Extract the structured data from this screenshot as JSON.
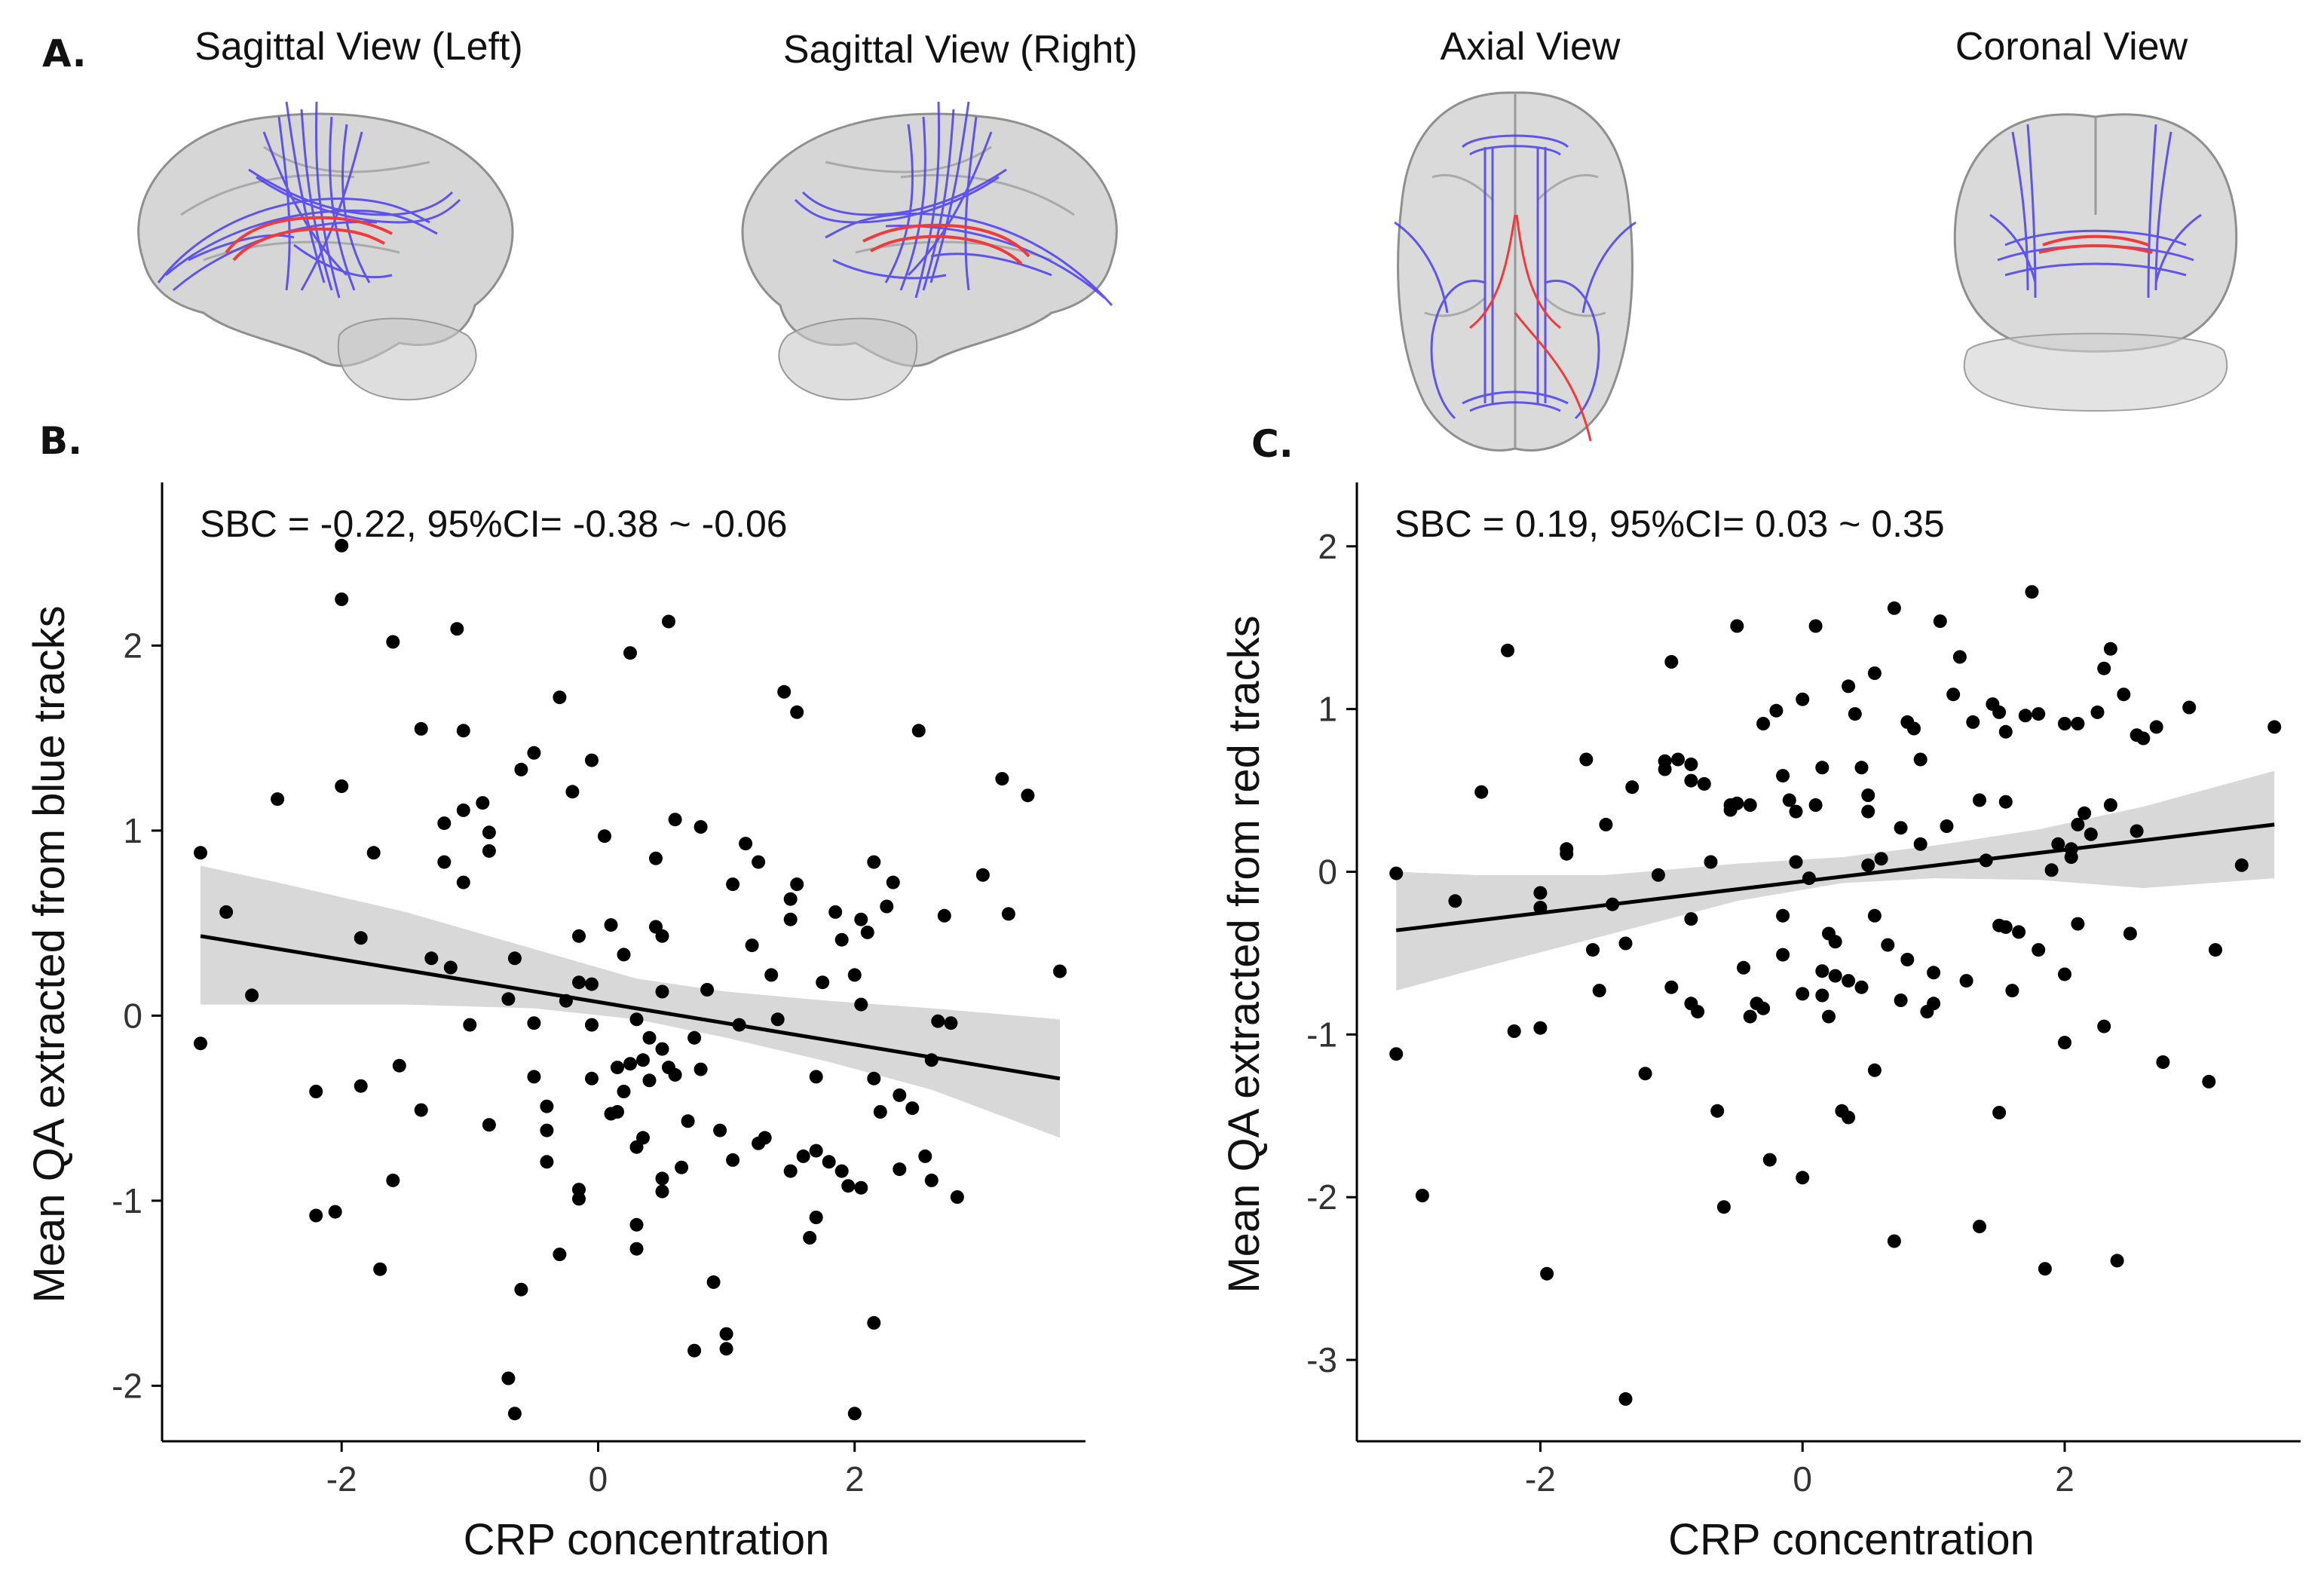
{
  "panel_a": {
    "letter": "A.",
    "views": [
      {
        "id": "sagittal-left",
        "title": "Sagittal View (Left)"
      },
      {
        "id": "sagittal-right",
        "title": "Sagittal View (Right)"
      },
      {
        "id": "axial",
        "title": "Axial View"
      },
      {
        "id": "coronal",
        "title": "Coronal View"
      }
    ],
    "colors": {
      "brain": "#a9a9a9",
      "blue_tracks": "#4a3df0",
      "red_tracks": "#ef3b3b"
    }
  },
  "chart_data": [
    {
      "panel_letter": "B.",
      "type": "scatter",
      "annotation": "SBC = -0.22, 95%CI= -0.38 ~ -0.06",
      "xlabel": "CRP concentration",
      "ylabel": "Mean QA extracted from blue tracks",
      "xlim": [
        -3.4,
        3.8
      ],
      "ylim": [
        -2.3,
        2.8
      ],
      "xticks": [
        -2,
        0,
        2
      ],
      "yticks": [
        -2,
        -1,
        0,
        1,
        2
      ],
      "fit": {
        "x": [
          -3.1,
          3.6
        ],
        "y": [
          0.43,
          -0.34
        ]
      },
      "ci_band": {
        "x": [
          -3.1,
          -2.5,
          -1.5,
          -0.5,
          0.3,
          1.0,
          1.8,
          2.6,
          3.6
        ],
        "lower": [
          0.06,
          0.06,
          0.06,
          0.04,
          -0.02,
          -0.12,
          -0.25,
          -0.4,
          -0.66
        ],
        "upper": [
          0.81,
          0.72,
          0.56,
          0.36,
          0.2,
          0.13,
          0.08,
          0.04,
          -0.02
        ]
      },
      "points": [
        [
          -3.1,
          0.88
        ],
        [
          -3.1,
          -0.15
        ],
        [
          -2.9,
          0.56
        ],
        [
          -2.7,
          0.11
        ],
        [
          -2.5,
          1.17
        ],
        [
          -2.2,
          -0.41
        ],
        [
          -2.2,
          -1.08
        ],
        [
          -2.05,
          -1.06
        ],
        [
          -2.0,
          2.54
        ],
        [
          -2.0,
          2.25
        ],
        [
          -2.0,
          1.24
        ],
        [
          -1.85,
          0.42
        ],
        [
          -1.85,
          -0.38
        ],
        [
          -1.75,
          0.88
        ],
        [
          -1.7,
          -1.37
        ],
        [
          -1.6,
          -0.89
        ],
        [
          -1.6,
          2.02
        ],
        [
          -1.55,
          -0.27
        ],
        [
          -1.38,
          1.55
        ],
        [
          -1.38,
          -0.51
        ],
        [
          -1.3,
          0.31
        ],
        [
          -1.2,
          1.04
        ],
        [
          -1.2,
          0.83
        ],
        [
          -1.15,
          0.26
        ],
        [
          -1.1,
          2.09
        ],
        [
          -1.05,
          1.54
        ],
        [
          -1.05,
          1.11
        ],
        [
          -1.05,
          0.72
        ],
        [
          -1.0,
          -0.05
        ],
        [
          -0.9,
          1.15
        ],
        [
          -0.85,
          0.99
        ],
        [
          -0.85,
          0.89
        ],
        [
          -0.85,
          -0.59
        ],
        [
          -0.7,
          -1.96
        ],
        [
          -0.7,
          0.09
        ],
        [
          -0.65,
          -2.15
        ],
        [
          -0.65,
          0.31
        ],
        [
          -0.6,
          1.33
        ],
        [
          -0.6,
          -1.48
        ],
        [
          -0.5,
          1.42
        ],
        [
          -0.5,
          -0.04
        ],
        [
          -0.5,
          -0.33
        ],
        [
          -0.4,
          -0.49
        ],
        [
          -0.4,
          -0.62
        ],
        [
          -0.4,
          -0.79
        ],
        [
          -0.3,
          1.72
        ],
        [
          -0.3,
          -1.29
        ],
        [
          -0.25,
          0.08
        ],
        [
          -0.2,
          1.21
        ],
        [
          -0.15,
          0.43
        ],
        [
          -0.15,
          0.18
        ],
        [
          -0.15,
          -0.94
        ],
        [
          -0.15,
          -0.99
        ],
        [
          -0.05,
          0.17
        ],
        [
          -0.05,
          -0.34
        ],
        [
          -0.05,
          1.38
        ],
        [
          -0.05,
          -0.05
        ],
        [
          0.05,
          0.97
        ],
        [
          0.1,
          0.49
        ],
        [
          0.1,
          -0.53
        ],
        [
          0.15,
          -0.28
        ],
        [
          0.15,
          -0.52
        ],
        [
          0.2,
          -0.41
        ],
        [
          0.2,
          0.33
        ],
        [
          0.25,
          1.96
        ],
        [
          0.25,
          -0.26
        ],
        [
          0.3,
          -0.02
        ],
        [
          0.3,
          -0.71
        ],
        [
          0.3,
          -1.13
        ],
        [
          0.3,
          -1.26
        ],
        [
          0.35,
          -0.66
        ],
        [
          0.35,
          -0.24
        ],
        [
          0.4,
          -0.35
        ],
        [
          0.4,
          -0.12
        ],
        [
          0.45,
          0.85
        ],
        [
          0.45,
          0.48
        ],
        [
          0.5,
          0.43
        ],
        [
          0.5,
          0.13
        ],
        [
          0.5,
          -0.18
        ],
        [
          0.5,
          -0.95
        ],
        [
          0.5,
          -0.88
        ],
        [
          0.55,
          2.13
        ],
        [
          0.55,
          -0.28
        ],
        [
          0.6,
          1.06
        ],
        [
          0.6,
          -0.32
        ],
        [
          0.65,
          -0.82
        ],
        [
          0.7,
          -0.57
        ],
        [
          0.75,
          -0.12
        ],
        [
          0.75,
          -1.81
        ],
        [
          0.8,
          1.02
        ],
        [
          0.8,
          -0.29
        ],
        [
          0.85,
          0.14
        ],
        [
          0.9,
          -1.44
        ],
        [
          0.95,
          -0.62
        ],
        [
          1.0,
          -1.8
        ],
        [
          1.0,
          -1.72
        ],
        [
          1.05,
          0.71
        ],
        [
          1.05,
          -0.78
        ],
        [
          1.1,
          -0.05
        ],
        [
          1.15,
          0.93
        ],
        [
          1.2,
          0.38
        ],
        [
          1.25,
          0.83
        ],
        [
          1.25,
          -0.69
        ],
        [
          1.3,
          -0.66
        ],
        [
          1.35,
          0.22
        ],
        [
          1.4,
          -0.02
        ],
        [
          1.45,
          1.75
        ],
        [
          1.5,
          0.52
        ],
        [
          1.5,
          0.63
        ],
        [
          1.5,
          -0.84
        ],
        [
          1.55,
          0.71
        ],
        [
          1.55,
          1.64
        ],
        [
          1.6,
          -0.76
        ],
        [
          1.65,
          -1.2
        ],
        [
          1.7,
          -1.09
        ],
        [
          1.7,
          -0.73
        ],
        [
          1.7,
          -0.33
        ],
        [
          1.75,
          0.18
        ],
        [
          1.8,
          -0.79
        ],
        [
          1.85,
          0.56
        ],
        [
          1.9,
          0.41
        ],
        [
          1.9,
          -0.84
        ],
        [
          1.95,
          -0.92
        ],
        [
          2.0,
          -2.15
        ],
        [
          2.0,
          0.22
        ],
        [
          2.05,
          0.52
        ],
        [
          2.05,
          -0.93
        ],
        [
          2.05,
          0.06
        ],
        [
          2.1,
          0.45
        ],
        [
          2.15,
          -1.66
        ],
        [
          2.15,
          0.83
        ],
        [
          2.15,
          -0.34
        ],
        [
          2.2,
          -0.52
        ],
        [
          2.25,
          0.59
        ],
        [
          2.3,
          0.72
        ],
        [
          2.35,
          -0.43
        ],
        [
          2.35,
          -0.83
        ],
        [
          2.45,
          -0.5
        ],
        [
          2.5,
          1.54
        ],
        [
          2.55,
          -0.76
        ],
        [
          2.6,
          -0.89
        ],
        [
          2.6,
          -0.24
        ],
        [
          2.65,
          -0.03
        ],
        [
          2.7,
          0.54
        ],
        [
          2.75,
          -0.04
        ],
        [
          2.8,
          -0.98
        ],
        [
          3.0,
          0.76
        ],
        [
          3.15,
          1.28
        ],
        [
          3.2,
          0.55
        ],
        [
          3.35,
          1.19
        ],
        [
          3.6,
          0.24
        ]
      ]
    },
    {
      "panel_letter": "C.",
      "type": "scatter",
      "annotation": "SBC = 0.19, 95%CI= 0.03 ~ 0.35",
      "xlabel": "CRP concentration",
      "ylabel": "Mean QA extracted from red tracks",
      "xlim": [
        -3.4,
        3.8
      ],
      "ylim": [
        -3.5,
        2.3
      ],
      "xticks": [
        -2,
        0,
        2
      ],
      "yticks": [
        -3,
        -2,
        -1,
        0,
        1,
        2
      ],
      "fit": {
        "x": [
          -3.1,
          3.6
        ],
        "y": [
          -0.36,
          0.29
        ]
      },
      "ci_band": {
        "x": [
          -3.1,
          -2.5,
          -1.5,
          -0.5,
          0.3,
          1.0,
          1.8,
          2.6,
          3.6
        ],
        "lower": [
          -0.73,
          -0.6,
          -0.39,
          -0.18,
          -0.07,
          -0.04,
          -0.05,
          -0.1,
          -0.04
        ],
        "upper": [
          0.0,
          -0.02,
          -0.02,
          0.05,
          0.09,
          0.16,
          0.26,
          0.4,
          0.62
        ]
      },
      "points": [
        [
          -3.1,
          -0.01
        ],
        [
          -3.1,
          -1.12
        ],
        [
          -2.9,
          -1.99
        ],
        [
          -2.65,
          -0.18
        ],
        [
          -2.45,
          0.49
        ],
        [
          -2.25,
          1.36
        ],
        [
          -2.2,
          -0.98
        ],
        [
          -2.0,
          -0.96
        ],
        [
          -2.0,
          -0.13
        ],
        [
          -2.0,
          -0.22
        ],
        [
          -1.95,
          -2.47
        ],
        [
          -1.8,
          0.14
        ],
        [
          -1.8,
          0.11
        ],
        [
          -1.65,
          0.69
        ],
        [
          -1.6,
          -0.48
        ],
        [
          -1.55,
          -0.73
        ],
        [
          -1.5,
          0.29
        ],
        [
          -1.45,
          -0.2
        ],
        [
          -1.35,
          -3.24
        ],
        [
          -1.35,
          -0.44
        ],
        [
          -1.3,
          0.52
        ],
        [
          -1.2,
          -1.24
        ],
        [
          -1.1,
          -0.02
        ],
        [
          -1.05,
          0.68
        ],
        [
          -1.05,
          0.63
        ],
        [
          -1.0,
          1.29
        ],
        [
          -1.0,
          -0.71
        ],
        [
          -0.95,
          0.69
        ],
        [
          -0.85,
          0.66
        ],
        [
          -0.85,
          0.56
        ],
        [
          -0.85,
          -0.29
        ],
        [
          -0.85,
          -0.81
        ],
        [
          -0.8,
          -0.86
        ],
        [
          -0.75,
          0.54
        ],
        [
          -0.7,
          0.06
        ],
        [
          -0.65,
          -1.47
        ],
        [
          -0.6,
          -2.06
        ],
        [
          -0.55,
          0.41
        ],
        [
          -0.55,
          0.38
        ],
        [
          -0.5,
          1.51
        ],
        [
          -0.5,
          0.42
        ],
        [
          -0.45,
          -0.59
        ],
        [
          -0.4,
          0.41
        ],
        [
          -0.4,
          -0.89
        ],
        [
          -0.35,
          -0.81
        ],
        [
          -0.3,
          0.91
        ],
        [
          -0.3,
          -0.84
        ],
        [
          -0.25,
          -1.77
        ],
        [
          -0.2,
          0.99
        ],
        [
          -0.15,
          0.59
        ],
        [
          -0.15,
          -0.27
        ],
        [
          -0.15,
          -0.51
        ],
        [
          -0.1,
          0.44
        ],
        [
          -0.05,
          0.06
        ],
        [
          -0.05,
          0.37
        ],
        [
          0.0,
          1.06
        ],
        [
          0.0,
          -0.75
        ],
        [
          0.0,
          -1.88
        ],
        [
          0.05,
          -0.04
        ],
        [
          0.1,
          0.41
        ],
        [
          0.1,
          1.51
        ],
        [
          0.15,
          -0.61
        ],
        [
          0.15,
          0.64
        ],
        [
          0.15,
          -0.76
        ],
        [
          0.2,
          -0.38
        ],
        [
          0.2,
          -0.89
        ],
        [
          0.25,
          -0.64
        ],
        [
          0.25,
          -0.43
        ],
        [
          0.3,
          -1.47
        ],
        [
          0.35,
          1.14
        ],
        [
          0.35,
          -1.51
        ],
        [
          0.35,
          -0.67
        ],
        [
          0.4,
          0.97
        ],
        [
          0.45,
          -0.71
        ],
        [
          0.45,
          0.64
        ],
        [
          0.5,
          0.47
        ],
        [
          0.5,
          0.37
        ],
        [
          0.5,
          0.04
        ],
        [
          0.55,
          1.22
        ],
        [
          0.55,
          -0.27
        ],
        [
          0.55,
          -1.22
        ],
        [
          0.6,
          0.08
        ],
        [
          0.65,
          -0.45
        ],
        [
          0.7,
          1.62
        ],
        [
          0.7,
          -2.27
        ],
        [
          0.75,
          0.27
        ],
        [
          0.75,
          -0.79
        ],
        [
          0.8,
          0.92
        ],
        [
          0.8,
          -0.54
        ],
        [
          0.85,
          0.88
        ],
        [
          0.9,
          0.69
        ],
        [
          0.9,
          0.17
        ],
        [
          0.95,
          -0.86
        ],
        [
          1.0,
          -0.81
        ],
        [
          1.0,
          -0.62
        ],
        [
          1.05,
          1.54
        ],
        [
          1.1,
          0.28
        ],
        [
          1.15,
          1.09
        ],
        [
          1.2,
          1.32
        ],
        [
          1.25,
          -0.67
        ],
        [
          1.3,
          0.92
        ],
        [
          1.35,
          0.44
        ],
        [
          1.35,
          -2.18
        ],
        [
          1.4,
          0.07
        ],
        [
          1.45,
          1.03
        ],
        [
          1.5,
          0.98
        ],
        [
          1.5,
          -0.33
        ],
        [
          1.5,
          -1.48
        ],
        [
          1.55,
          0.86
        ],
        [
          1.55,
          0.43
        ],
        [
          1.55,
          -0.34
        ],
        [
          1.6,
          -0.73
        ],
        [
          1.65,
          -0.37
        ],
        [
          1.7,
          0.96
        ],
        [
          1.75,
          1.72
        ],
        [
          1.8,
          0.97
        ],
        [
          1.8,
          -0.48
        ],
        [
          1.85,
          -2.44
        ],
        [
          1.9,
          0.01
        ],
        [
          1.95,
          0.17
        ],
        [
          2.0,
          0.91
        ],
        [
          2.0,
          -0.63
        ],
        [
          2.0,
          -1.05
        ],
        [
          2.05,
          0.14
        ],
        [
          2.05,
          0.09
        ],
        [
          2.1,
          0.91
        ],
        [
          2.1,
          0.29
        ],
        [
          2.1,
          -0.32
        ],
        [
          2.15,
          0.36
        ],
        [
          2.2,
          0.23
        ],
        [
          2.25,
          0.98
        ],
        [
          2.3,
          1.25
        ],
        [
          2.3,
          -0.95
        ],
        [
          2.35,
          1.37
        ],
        [
          2.35,
          0.41
        ],
        [
          2.4,
          -2.39
        ],
        [
          2.45,
          1.09
        ],
        [
          2.5,
          -0.38
        ],
        [
          2.55,
          0.25
        ],
        [
          2.55,
          0.84
        ],
        [
          2.6,
          0.82
        ],
        [
          2.7,
          0.89
        ],
        [
          2.75,
          -1.17
        ],
        [
          2.95,
          1.01
        ],
        [
          3.1,
          -1.29
        ],
        [
          3.15,
          -0.48
        ],
        [
          3.35,
          0.04
        ],
        [
          3.6,
          0.89
        ]
      ]
    }
  ]
}
